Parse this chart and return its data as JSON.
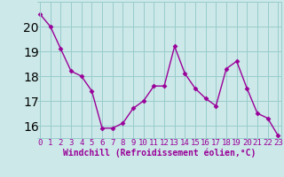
{
  "x": [
    0,
    1,
    2,
    3,
    4,
    5,
    6,
    7,
    8,
    9,
    10,
    11,
    12,
    13,
    14,
    15,
    16,
    17,
    18,
    19,
    20,
    21,
    22,
    23
  ],
  "y": [
    20.5,
    20.0,
    19.1,
    18.2,
    18.0,
    17.4,
    15.9,
    15.9,
    16.1,
    16.7,
    17.0,
    17.6,
    17.6,
    19.2,
    18.1,
    17.5,
    17.1,
    16.8,
    18.3,
    18.6,
    17.5,
    16.5,
    16.3,
    15.6
  ],
  "line_color": "#990099",
  "marker": "D",
  "marker_size": 2.5,
  "linewidth": 1.0,
  "bg_color": "#cce8e8",
  "grid_color": "#99cccc",
  "xlabel": "Windchill (Refroidissement éolien,°C)",
  "xlabel_color": "#990099",
  "xlabel_fontsize": 7,
  "tick_color": "#990099",
  "tick_fontsize": 6.5,
  "ylim": [
    15.5,
    21.0
  ],
  "yticks": [
    16,
    17,
    18,
    19,
    20
  ],
  "xticks": [
    0,
    1,
    2,
    3,
    4,
    5,
    6,
    7,
    8,
    9,
    10,
    11,
    12,
    13,
    14,
    15,
    16,
    17,
    18,
    19,
    20,
    21,
    22,
    23
  ],
  "xlim": [
    -0.3,
    23.3
  ]
}
